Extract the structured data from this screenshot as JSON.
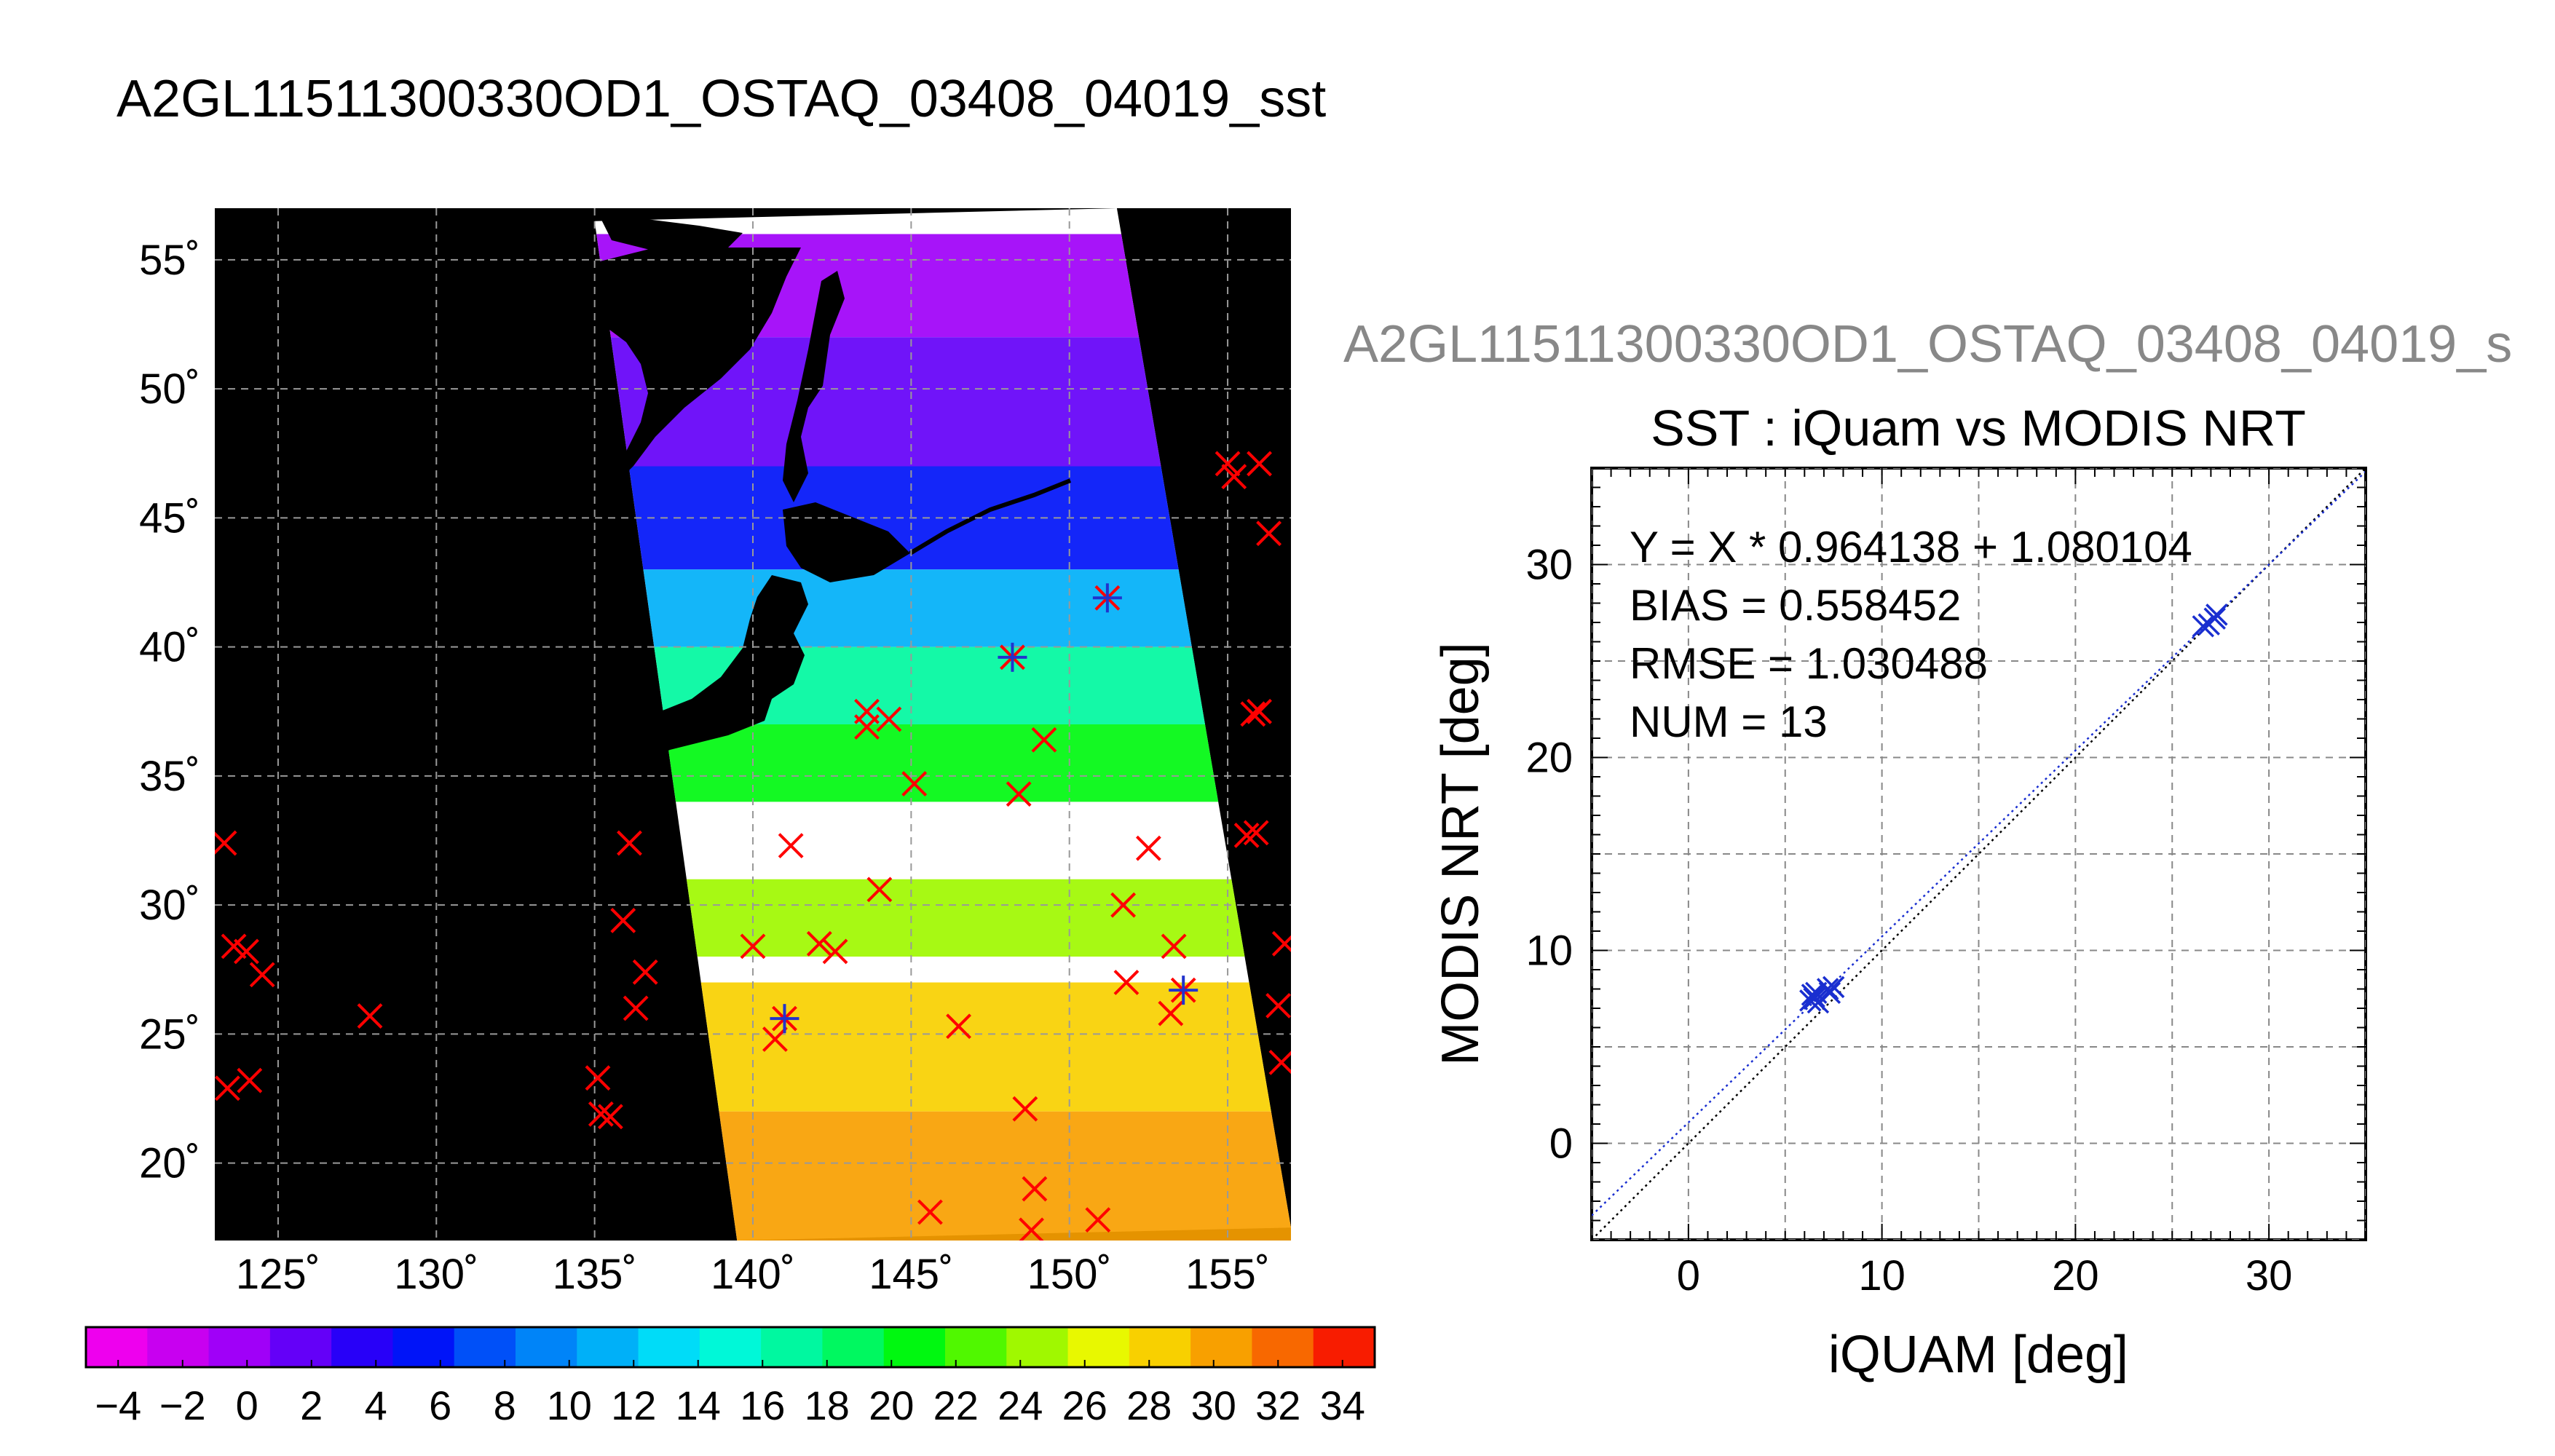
{
  "figure_title": "A2GL11511300330OD1_OSTAQ_03408_04019_sst",
  "scatter_header": "A2GL11511300330OD1_OSTAQ_03408_04019_s",
  "chart_data": [
    {
      "type": "heatmap",
      "panel": "map",
      "title": "",
      "lon_range": [
        123,
        157
      ],
      "lat_range": [
        17,
        57
      ],
      "x_ticks": [
        125,
        130,
        135,
        140,
        145,
        150,
        155
      ],
      "y_ticks": [
        20,
        25,
        30,
        35,
        40,
        45,
        50,
        55
      ],
      "x_tick_labels": [
        "125˚",
        "130˚",
        "135˚",
        "140˚",
        "145˚",
        "150˚",
        "155˚"
      ],
      "y_tick_labels": [
        "20˚",
        "25˚",
        "30˚",
        "35˚",
        "40˚",
        "45˚",
        "50˚",
        "55˚"
      ],
      "grid": true,
      "swath_corners_lon_lat": [
        [
          135.0,
          56.5
        ],
        [
          151.5,
          57.0
        ],
        [
          157.0,
          17.5
        ],
        [
          139.5,
          17.0
        ]
      ],
      "sst_bands": [
        {
          "lat_min": 52,
          "lat_max": 56,
          "sst": 0
        },
        {
          "lat_min": 47,
          "lat_max": 52,
          "sst": 2
        },
        {
          "lat_min": 43,
          "lat_max": 47,
          "sst": 6
        },
        {
          "lat_min": 40,
          "lat_max": 43,
          "sst": 12
        },
        {
          "lat_min": 37,
          "lat_max": 40,
          "sst": 16
        },
        {
          "lat_min": 34,
          "lat_max": 37,
          "sst": 20
        },
        {
          "lat_min": 28,
          "lat_max": 31,
          "sst": 24
        },
        {
          "lat_min": 22,
          "lat_max": 27,
          "sst": 28
        },
        {
          "lat_min": 17,
          "lat_max": 22,
          "sst": 30
        }
      ],
      "iquam_points_matched": [
        {
          "lon": 141.0,
          "lat": 25.6
        },
        {
          "lon": 148.2,
          "lat": 39.6
        },
        {
          "lon": 151.2,
          "lat": 41.9
        },
        {
          "lon": 153.6,
          "lat": 26.7
        }
      ],
      "iquam_points_unmatched": [
        {
          "lon": 123.3,
          "lat": 32.4
        },
        {
          "lon": 123.6,
          "lat": 28.4
        },
        {
          "lon": 124.0,
          "lat": 28.2
        },
        {
          "lon": 124.5,
          "lat": 27.3
        },
        {
          "lon": 123.4,
          "lat": 22.9
        },
        {
          "lon": 124.1,
          "lat": 23.2
        },
        {
          "lon": 127.9,
          "lat": 25.7
        },
        {
          "lon": 135.1,
          "lat": 23.3
        },
        {
          "lon": 135.2,
          "lat": 21.9
        },
        {
          "lon": 135.5,
          "lat": 21.8
        },
        {
          "lon": 136.1,
          "lat": 32.4
        },
        {
          "lon": 135.9,
          "lat": 29.4
        },
        {
          "lon": 136.6,
          "lat": 27.4
        },
        {
          "lon": 136.3,
          "lat": 26.0
        },
        {
          "lon": 140.0,
          "lat": 28.4
        },
        {
          "lon": 141.2,
          "lat": 32.3
        },
        {
          "lon": 140.7,
          "lat": 24.8
        },
        {
          "lon": 142.1,
          "lat": 28.5
        },
        {
          "lon": 142.6,
          "lat": 28.2
        },
        {
          "lon": 143.6,
          "lat": 37.5
        },
        {
          "lon": 143.6,
          "lat": 36.9
        },
        {
          "lon": 144.3,
          "lat": 37.2
        },
        {
          "lon": 144.0,
          "lat": 30.6
        },
        {
          "lon": 145.1,
          "lat": 34.7
        },
        {
          "lon": 146.5,
          "lat": 25.3
        },
        {
          "lon": 145.6,
          "lat": 18.1
        },
        {
          "lon": 148.4,
          "lat": 34.3
        },
        {
          "lon": 149.2,
          "lat": 36.4
        },
        {
          "lon": 148.6,
          "lat": 22.1
        },
        {
          "lon": 148.9,
          "lat": 19.0
        },
        {
          "lon": 148.8,
          "lat": 17.4
        },
        {
          "lon": 150.9,
          "lat": 17.8
        },
        {
          "lon": 151.7,
          "lat": 30.0
        },
        {
          "lon": 151.8,
          "lat": 27.0
        },
        {
          "lon": 152.5,
          "lat": 32.2
        },
        {
          "lon": 153.3,
          "lat": 28.4
        },
        {
          "lon": 153.2,
          "lat": 25.8
        },
        {
          "lon": 155.0,
          "lat": 47.1
        },
        {
          "lon": 155.2,
          "lat": 46.6
        },
        {
          "lon": 156.0,
          "lat": 47.1
        },
        {
          "lon": 156.3,
          "lat": 44.4
        },
        {
          "lon": 156.0,
          "lat": 37.5
        },
        {
          "lon": 155.8,
          "lat": 37.4
        },
        {
          "lon": 155.6,
          "lat": 32.7
        },
        {
          "lon": 155.9,
          "lat": 32.8
        },
        {
          "lon": 156.8,
          "lat": 28.5
        },
        {
          "lon": 156.6,
          "lat": 26.1
        },
        {
          "lon": 156.7,
          "lat": 23.9
        }
      ]
    },
    {
      "type": "scatter",
      "panel": "scatter",
      "title": "SST : iQuam vs MODIS NRT",
      "xlabel": "iQUAM [deg]",
      "ylabel": "MODIS NRT [deg]",
      "xlim": [
        -5,
        35
      ],
      "ylim": [
        -5,
        35
      ],
      "x_ticks": [
        0,
        10,
        20,
        30
      ],
      "y_ticks": [
        0,
        10,
        20,
        30
      ],
      "x_tick_labels": [
        "0",
        "10",
        "20",
        "30"
      ],
      "y_tick_labels": [
        "0",
        "10",
        "20",
        "30"
      ],
      "grid": true,
      "stats": [
        "Y = X * 0.964138 + 1.080104",
        "BIAS = 0.558452",
        "RMSE = 1.030488",
        "NUM = 13"
      ],
      "fit": {
        "slope": 0.964138,
        "intercept": 1.080104
      },
      "points": [
        {
          "x": 6.3,
          "y": 7.4
        },
        {
          "x": 6.4,
          "y": 7.7
        },
        {
          "x": 6.5,
          "y": 7.5
        },
        {
          "x": 6.6,
          "y": 7.8
        },
        {
          "x": 6.7,
          "y": 7.3
        },
        {
          "x": 6.5,
          "y": 7.6
        },
        {
          "x": 7.2,
          "y": 8.0
        },
        {
          "x": 7.5,
          "y": 8.1
        },
        {
          "x": 7.3,
          "y": 7.8
        },
        {
          "x": 26.6,
          "y": 26.8
        },
        {
          "x": 26.9,
          "y": 26.9
        },
        {
          "x": 27.2,
          "y": 27.2
        },
        {
          "x": 27.3,
          "y": 27.4
        }
      ]
    },
    {
      "type": "heatmap",
      "panel": "colorbar",
      "tick_values": [
        -4,
        -2,
        0,
        2,
        4,
        6,
        8,
        10,
        12,
        14,
        16,
        18,
        20,
        22,
        24,
        26,
        28,
        30,
        32,
        34
      ],
      "tick_labels": [
        "−4",
        "−2",
        "0",
        "2",
        "4",
        "6",
        "8",
        "10",
        "12",
        "14",
        "16",
        "18",
        "20",
        "22",
        "24",
        "26",
        "28",
        "30",
        "32",
        "34"
      ],
      "colors": [
        "#ee00ee",
        "#c800f0",
        "#a000f8",
        "#6400f8",
        "#2800f8",
        "#0014f8",
        "#0050f8",
        "#0084f8",
        "#00b0f8",
        "#00dcf8",
        "#00f8d8",
        "#00f8a0",
        "#00f860",
        "#00f810",
        "#50f800",
        "#a0f800",
        "#e8f800",
        "#f8d000",
        "#f8a000",
        "#f86800",
        "#f81c00"
      ]
    }
  ]
}
